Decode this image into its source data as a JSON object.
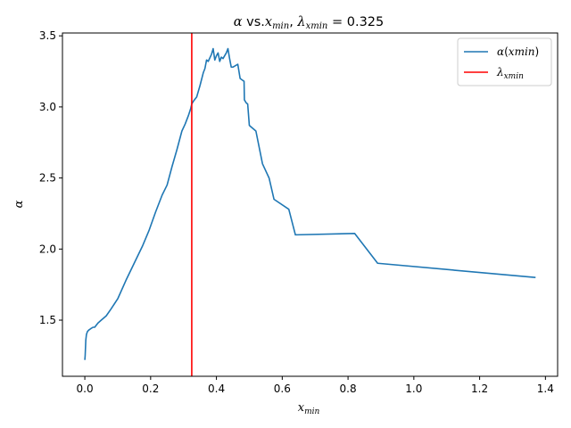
{
  "chart_data": {
    "type": "line",
    "title": {
      "greek": "α",
      "vs": " vs.",
      "xsym": "x",
      "xsub": "min",
      "sep": ",  ",
      "lam": "λ",
      "lamsub": "xmin",
      "eq": " = 0.325"
    },
    "xlabel": {
      "sym": "x",
      "sub": "min"
    },
    "ylabel": "α",
    "xlim": [
      -0.068,
      1.437
    ],
    "ylim": [
      1.105,
      3.52
    ],
    "xticks": [
      0.0,
      0.2,
      0.4,
      0.6,
      0.8,
      1.0,
      1.2,
      1.4
    ],
    "xtick_labels": [
      "0.0",
      "0.2",
      "0.4",
      "0.6",
      "0.8",
      "1.0",
      "1.2",
      "1.4"
    ],
    "yticks": [
      1.5,
      2.0,
      2.5,
      3.0,
      3.5
    ],
    "ytick_labels": [
      "1.5",
      "2.0",
      "2.5",
      "3.0",
      "3.5"
    ],
    "grid": false,
    "legend_position": "top-right",
    "series": [
      {
        "name": "α(xmin)",
        "color": "#1f77b4",
        "x": [
          0.0,
          0.001,
          0.003,
          0.005,
          0.008,
          0.012,
          0.018,
          0.025,
          0.03,
          0.04,
          0.05,
          0.065,
          0.08,
          0.1,
          0.125,
          0.15,
          0.175,
          0.195,
          0.215,
          0.235,
          0.25,
          0.265,
          0.28,
          0.295,
          0.305,
          0.315,
          0.322,
          0.325,
          0.33,
          0.34,
          0.35,
          0.36,
          0.365,
          0.37,
          0.375,
          0.385,
          0.39,
          0.395,
          0.4,
          0.405,
          0.41,
          0.415,
          0.42,
          0.43,
          0.435,
          0.44,
          0.445,
          0.45,
          0.465,
          0.472,
          0.478,
          0.484,
          0.485,
          0.49,
          0.495,
          0.5,
          0.505,
          0.515,
          0.52,
          0.54,
          0.56,
          0.575,
          0.62,
          0.64,
          0.82,
          0.89,
          1.37
        ],
        "y": [
          1.22,
          1.25,
          1.36,
          1.4,
          1.42,
          1.43,
          1.44,
          1.45,
          1.45,
          1.48,
          1.5,
          1.53,
          1.58,
          1.65,
          1.78,
          1.9,
          2.02,
          2.13,
          2.26,
          2.38,
          2.45,
          2.58,
          2.7,
          2.83,
          2.88,
          2.94,
          2.99,
          3.02,
          3.04,
          3.07,
          3.15,
          3.24,
          3.27,
          3.33,
          3.32,
          3.37,
          3.41,
          3.33,
          3.36,
          3.38,
          3.32,
          3.35,
          3.34,
          3.38,
          3.41,
          3.34,
          3.28,
          3.28,
          3.3,
          3.2,
          3.19,
          3.18,
          3.05,
          3.03,
          3.02,
          2.87,
          2.86,
          2.84,
          2.83,
          2.6,
          2.5,
          2.35,
          2.28,
          2.1,
          2.11,
          1.9,
          1.8
        ]
      }
    ],
    "vlines": [
      {
        "name": "λxmin",
        "x": 0.325,
        "color": "#ff0000"
      }
    ],
    "legend": [
      {
        "sym": "α",
        "paren": "(",
        "var": "xmin",
        "close": ")",
        "color": "#1f77b4"
      },
      {
        "sym": "λ",
        "sub": "xmin",
        "color": "#ff0000"
      }
    ]
  }
}
